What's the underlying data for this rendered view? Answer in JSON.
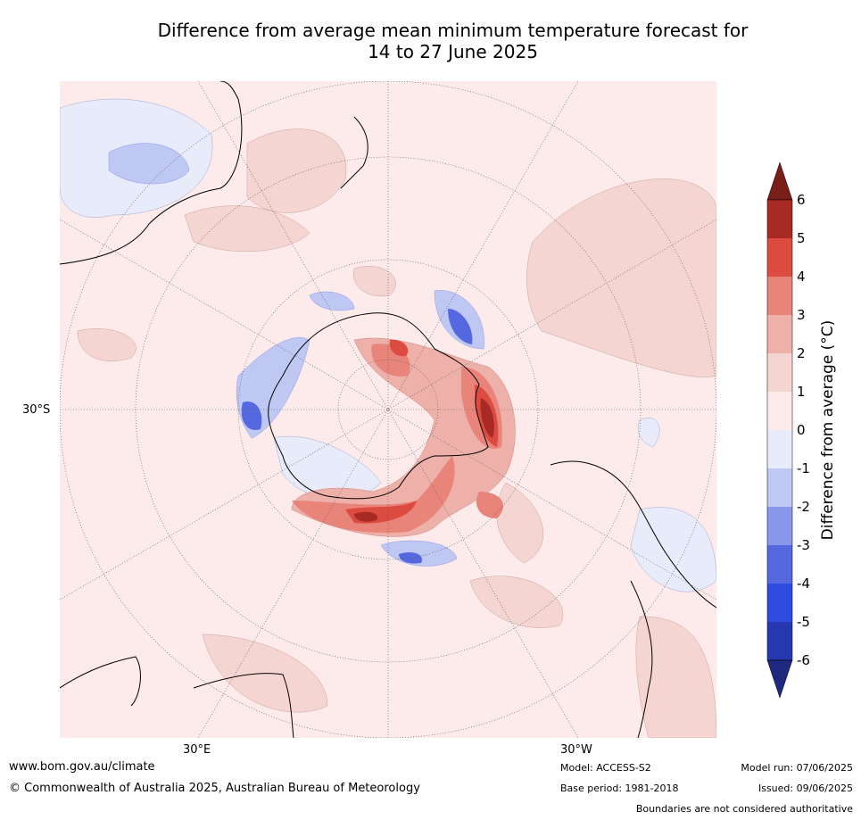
{
  "title_line1": "Difference from average mean minimum temperature forecast for",
  "title_line2": "14 to 27 June 2025",
  "map": {
    "lat_label": "30°S",
    "lon_label_left": "30°E",
    "lon_label_right": "30°W",
    "colors": {
      "ocean_bg": "#fcebea",
      "land_line": "#000000",
      "border_line": "#808080",
      "grid_line": "#555555"
    }
  },
  "colorbar": {
    "label": "Difference from average (°C)",
    "levels": [
      {
        "tick": "6",
        "color": "#a82a25"
      },
      {
        "tick": "5",
        "color": "#dc4b40"
      },
      {
        "tick": "4",
        "color": "#e8847a"
      },
      {
        "tick": "3",
        "color": "#eeb1aa"
      },
      {
        "tick": "2",
        "color": "#f5d5d2"
      },
      {
        "tick": "1",
        "color": "#fcebea"
      },
      {
        "tick": "0",
        "color": "#e7ebfa"
      },
      {
        "tick": "-1",
        "color": "#bfc8f2"
      },
      {
        "tick": "-2",
        "color": "#8897ea"
      },
      {
        "tick": "-3",
        "color": "#5668e0"
      },
      {
        "tick": "-4",
        "color": "#2e4de0"
      },
      {
        "tick": "-5",
        "color": "#2538b0"
      },
      {
        "tick": "-6",
        "color": "#1e2a80"
      }
    ],
    "top_extend_color": "#7a1e1a",
    "bottom_extend_color": "#1e2a80"
  },
  "footer": {
    "website": "www.bom.gov.au/climate",
    "copyright": "© Commonwealth of Australia 2025, Australian Bureau of Meteorology",
    "model": "Model: ACCESS-S2",
    "base_period": "Base period: 1981-2018",
    "model_run": "Model run: 07/06/2025",
    "issued": "Issued: 09/06/2025",
    "boundaries": "Boundaries are not considered authoritative"
  }
}
